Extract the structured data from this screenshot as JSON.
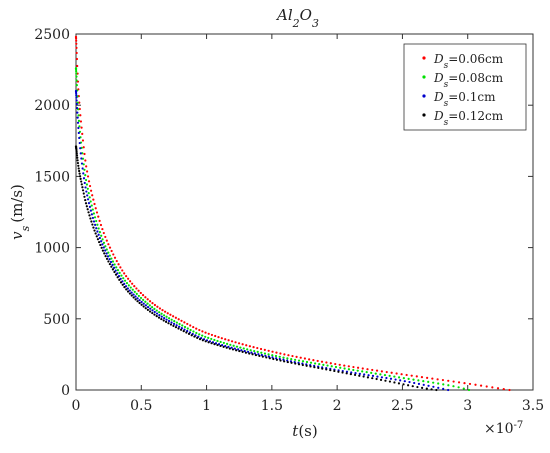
{
  "chart_data": {
    "type": "scatter",
    "title": {
      "base": "Al",
      "sub1": "2",
      "mid": "O",
      "sub2": "3"
    },
    "xlabel": {
      "var": "t",
      "unit": "(s)"
    },
    "ylabel": {
      "var": "v",
      "sub": "s",
      "unit": "(m/s)"
    },
    "x_multiplier": {
      "base": "×10",
      "exp": "-7"
    },
    "xlim": [
      0,
      3.5
    ],
    "ylim": [
      0,
      2500
    ],
    "xticks": [
      "0",
      "0.5",
      "1",
      "1.5",
      "2",
      "2.5",
      "3",
      "3.5"
    ],
    "yticks": [
      "0",
      "500",
      "1000",
      "1500",
      "2000",
      "2500"
    ],
    "legend_position": "top-right",
    "series": [
      {
        "name": "D_s=0.06cm",
        "label_var": "D",
        "label_sub": "s",
        "label_rest": "=0.06cm",
        "color": "#ff0000",
        "points": [
          [
            0.0,
            2480
          ],
          [
            0.02,
            2080
          ],
          [
            0.05,
            1780
          ],
          [
            0.08,
            1560
          ],
          [
            0.15,
            1280
          ],
          [
            0.25,
            1020
          ],
          [
            0.4,
            780
          ],
          [
            0.6,
            600
          ],
          [
            0.8,
            490
          ],
          [
            1.0,
            400
          ],
          [
            1.5,
            270
          ],
          [
            2.0,
            180
          ],
          [
            2.5,
            110
          ],
          [
            3.0,
            45
          ],
          [
            3.32,
            0
          ]
        ]
      },
      {
        "name": "D_s=0.08cm",
        "label_var": "D",
        "label_sub": "s",
        "label_rest": "=0.08cm",
        "color": "#00e000",
        "points": [
          [
            0.0,
            2260
          ],
          [
            0.02,
            1920
          ],
          [
            0.05,
            1650
          ],
          [
            0.08,
            1460
          ],
          [
            0.15,
            1200
          ],
          [
            0.25,
            960
          ],
          [
            0.4,
            740
          ],
          [
            0.6,
            570
          ],
          [
            0.8,
            460
          ],
          [
            1.0,
            370
          ],
          [
            1.5,
            245
          ],
          [
            2.0,
            160
          ],
          [
            2.5,
            85
          ],
          [
            2.9,
            25
          ],
          [
            3.01,
            0
          ]
        ]
      },
      {
        "name": "D_s=0.1cm",
        "label_var": "D",
        "label_sub": "s",
        "label_rest": "=0.1cm",
        "color": "#0000cc",
        "points": [
          [
            0.0,
            2100
          ],
          [
            0.02,
            1820
          ],
          [
            0.05,
            1560
          ],
          [
            0.08,
            1390
          ],
          [
            0.15,
            1150
          ],
          [
            0.25,
            930
          ],
          [
            0.4,
            710
          ],
          [
            0.6,
            550
          ],
          [
            0.8,
            440
          ],
          [
            1.0,
            350
          ],
          [
            1.5,
            230
          ],
          [
            2.0,
            140
          ],
          [
            2.5,
            65
          ],
          [
            2.75,
            20
          ],
          [
            2.85,
            0
          ]
        ]
      },
      {
        "name": "D_s=0.12cm",
        "label_var": "D",
        "label_sub": "s",
        "label_rest": "=0.12cm",
        "color": "#000000",
        "points": [
          [
            0.0,
            1710
          ],
          [
            0.02,
            1560
          ],
          [
            0.05,
            1420
          ],
          [
            0.08,
            1300
          ],
          [
            0.15,
            1100
          ],
          [
            0.25,
            900
          ],
          [
            0.4,
            690
          ],
          [
            0.6,
            530
          ],
          [
            0.8,
            425
          ],
          [
            1.0,
            340
          ],
          [
            1.5,
            220
          ],
          [
            2.0,
            130
          ],
          [
            2.4,
            60
          ],
          [
            2.65,
            15
          ],
          [
            2.76,
            0
          ]
        ]
      }
    ]
  }
}
